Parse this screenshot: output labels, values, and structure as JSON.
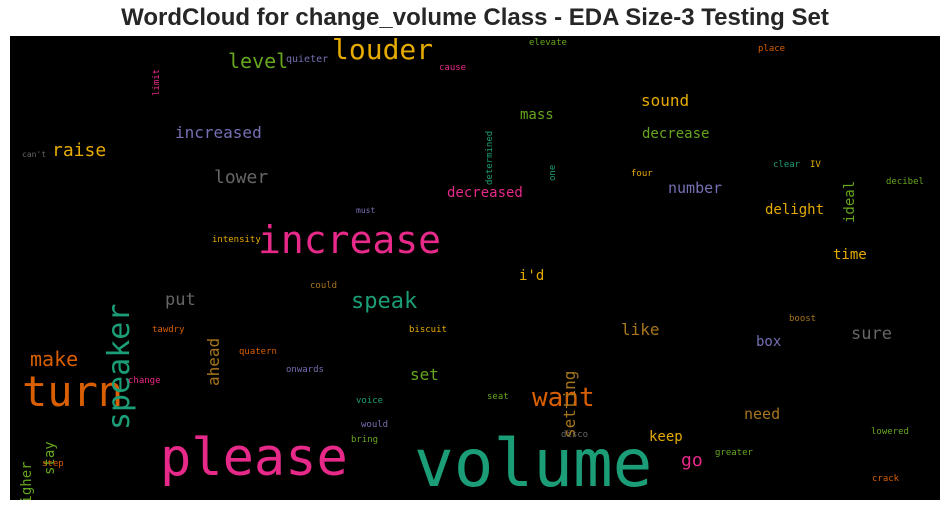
{
  "chart_data": {
    "type": "wordcloud",
    "title": "WordCloud for change_volume Class - EDA Size-3 Testing Set",
    "background": "#000000",
    "words": [
      {
        "text": "volume",
        "color": "#1b9e77"
      },
      {
        "text": "please",
        "color": "#e7298a"
      },
      {
        "text": "increase",
        "color": "#e7298a"
      },
      {
        "text": "turn",
        "color": "#d95f02"
      },
      {
        "text": "speaker",
        "color": "#1b9e77"
      },
      {
        "text": "louder",
        "color": "#e6ab02"
      },
      {
        "text": "want",
        "color": "#d95f02"
      },
      {
        "text": "speak",
        "color": "#1b9e77"
      },
      {
        "text": "make",
        "color": "#d95f02"
      },
      {
        "text": "lower",
        "color": "#666666"
      },
      {
        "text": "raise",
        "color": "#e6ab02"
      },
      {
        "text": "level",
        "color": "#66a61e"
      },
      {
        "text": "sound",
        "color": "#e6ab02"
      },
      {
        "text": "increased",
        "color": "#7570b3"
      },
      {
        "text": "put",
        "color": "#666666"
      },
      {
        "text": "ahead",
        "color": "#a6761d"
      },
      {
        "text": "setting",
        "color": "#a6761d"
      },
      {
        "text": "set",
        "color": "#66a61e"
      },
      {
        "text": "like",
        "color": "#a6761d"
      },
      {
        "text": "sure",
        "color": "#666666"
      },
      {
        "text": "number",
        "color": "#7570b3"
      },
      {
        "text": "decreased",
        "color": "#e7298a"
      },
      {
        "text": "decrease",
        "color": "#66a61e"
      },
      {
        "text": "mass",
        "color": "#66a61e"
      },
      {
        "text": "delight",
        "color": "#e6ab02"
      },
      {
        "text": "time",
        "color": "#e6ab02"
      },
      {
        "text": "need",
        "color": "#a6761d"
      },
      {
        "text": "keep",
        "color": "#e6ab02"
      },
      {
        "text": "go",
        "color": "#e7298a"
      },
      {
        "text": "i'd",
        "color": "#e6ab02"
      },
      {
        "text": "ideal",
        "color": "#66a61e"
      },
      {
        "text": "box",
        "color": "#7570b3"
      },
      {
        "text": "higher",
        "color": "#66a61e"
      },
      {
        "text": "stay",
        "color": "#66a61e"
      },
      {
        "text": "quieter",
        "color": "#7570b3"
      },
      {
        "text": "limit",
        "color": "#e7298a"
      },
      {
        "text": "elevate",
        "color": "#66a61e"
      },
      {
        "text": "cause",
        "color": "#e7298a"
      },
      {
        "text": "determined",
        "color": "#1b9e77"
      },
      {
        "text": "place",
        "color": "#d95f02"
      },
      {
        "text": "can't",
        "color": "#666666"
      },
      {
        "text": "one",
        "color": "#1b9e77"
      },
      {
        "text": "four",
        "color": "#e6ab02"
      },
      {
        "text": "clear",
        "color": "#1b9e77"
      },
      {
        "text": "IV",
        "color": "#e6ab02"
      },
      {
        "text": "decibel",
        "color": "#66a61e"
      },
      {
        "text": "must",
        "color": "#7570b3"
      },
      {
        "text": "intensity",
        "color": "#e6ab02"
      },
      {
        "text": "could",
        "color": "#a6761d"
      },
      {
        "text": "tawdry",
        "color": "#d95f02"
      },
      {
        "text": "biscuit",
        "color": "#e6ab02"
      },
      {
        "text": "boost",
        "color": "#a6761d"
      },
      {
        "text": "quatern",
        "color": "#d95f02"
      },
      {
        "text": "onwards",
        "color": "#7570b3"
      },
      {
        "text": "change",
        "color": "#e7298a"
      },
      {
        "text": "voice",
        "color": "#1b9e77"
      },
      {
        "text": "seat",
        "color": "#66a61e"
      },
      {
        "text": "would",
        "color": "#7570b3"
      },
      {
        "text": "bring",
        "color": "#66a61e"
      },
      {
        "text": "disco",
        "color": "#666666"
      },
      {
        "text": "greater",
        "color": "#66a61e"
      },
      {
        "text": "lowered",
        "color": "#66a61e"
      },
      {
        "text": "step",
        "color": "#d95f02"
      },
      {
        "text": "crack",
        "color": "#d95f02"
      }
    ]
  }
}
